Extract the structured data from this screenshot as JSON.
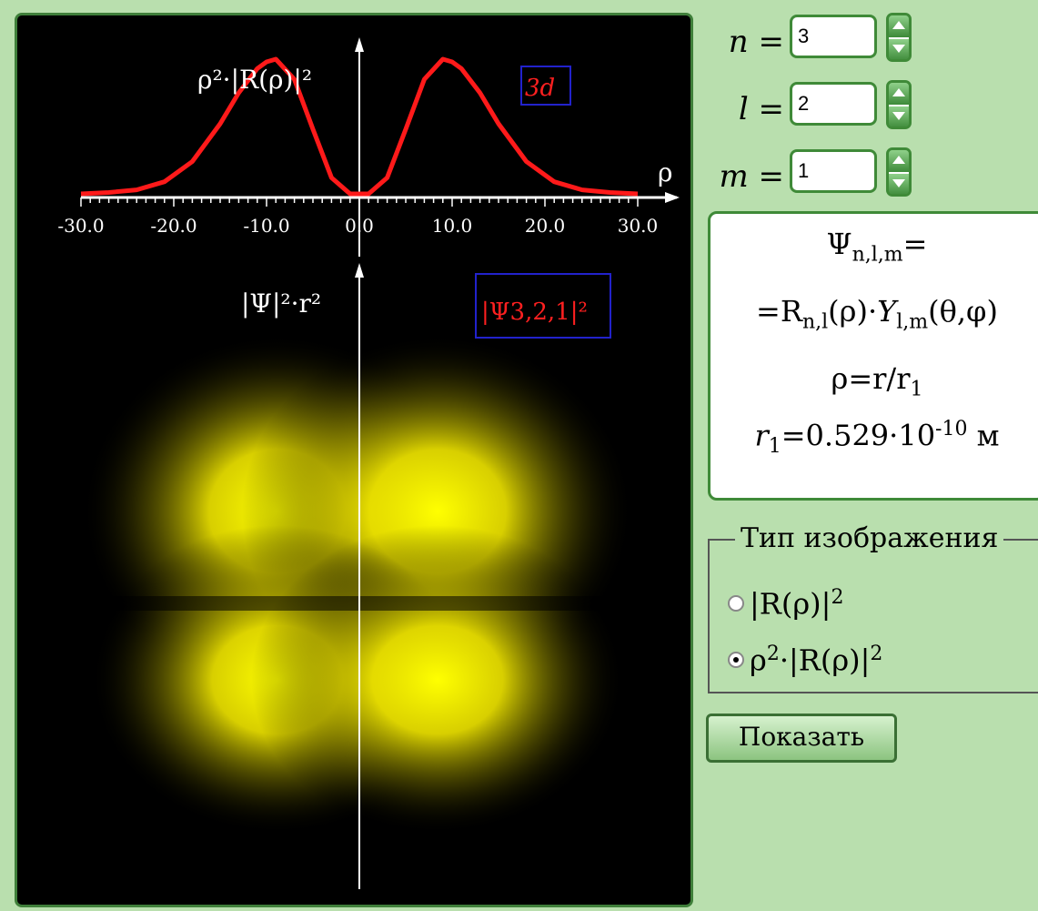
{
  "viz": {
    "radial_plot": {
      "y_axis_label": "ρ²·|R(ρ)|²",
      "x_axis_label": "ρ",
      "badge": "3d",
      "tick_labels": [
        "-30.0",
        "-20.0",
        "-10.0",
        "0.0",
        "10.0",
        "20.0",
        "30.0"
      ],
      "curve_color": "#ff1a1a"
    },
    "density_plot": {
      "y_axis_label": "|Ψ|²·r²",
      "badge": "|Ψ3,2,1|²",
      "glow_color": "#ffff00"
    }
  },
  "chart_data": {
    "type": "line",
    "title": "",
    "xlabel": "ρ",
    "ylabel": "ρ²·|R(ρ)|²",
    "xlim": [
      -30,
      30
    ],
    "x_ticks": [
      -30.0,
      -20.0,
      -10.0,
      0.0,
      10.0,
      20.0,
      30.0
    ],
    "x": [
      -30,
      -27,
      -24,
      -21,
      -18,
      -15,
      -13,
      -11,
      -10,
      -9,
      -7,
      -5,
      -3,
      -1,
      0,
      1,
      3,
      5,
      7,
      9,
      10,
      11,
      13,
      15,
      18,
      21,
      24,
      27,
      30
    ],
    "y": [
      0.0,
      0.01,
      0.03,
      0.09,
      0.24,
      0.52,
      0.75,
      0.93,
      0.98,
      1.0,
      0.85,
      0.48,
      0.12,
      0.0,
      0.0,
      0.0,
      0.12,
      0.48,
      0.85,
      1.0,
      0.98,
      0.93,
      0.75,
      0.52,
      0.24,
      0.09,
      0.03,
      0.01,
      0.0
    ]
  },
  "controls": {
    "n": {
      "label": "n",
      "value": "3"
    },
    "l": {
      "label": "l",
      "value": "2"
    },
    "m": {
      "label": "m",
      "value": "1"
    }
  },
  "formula": {
    "psi": "Ψ",
    "psi_sub": "n,l,m",
    "eq": "=",
    "r_line_pre": "=R",
    "r_sub": "n,l",
    "r_mid": "(ρ)·",
    "y": "Y",
    "y_sub": "l,m",
    "y_args": "(θ,φ)",
    "rho_def": "ρ=r/r",
    "rho_sub": "1",
    "r1_pre": "r",
    "r1_sub": "1",
    "r1_val": "=0.529·10",
    "r1_exp": "-10",
    "r1_unit": "м"
  },
  "display_type": {
    "title": "Тип изображения",
    "option1_pre": "|R(ρ)|",
    "option1_exp": "2",
    "option2_pre": "ρ",
    "option2_exp": "2",
    "option2_mid": "·|R(ρ)|",
    "option2_exp2": "2"
  },
  "button": {
    "label": "Показать"
  }
}
